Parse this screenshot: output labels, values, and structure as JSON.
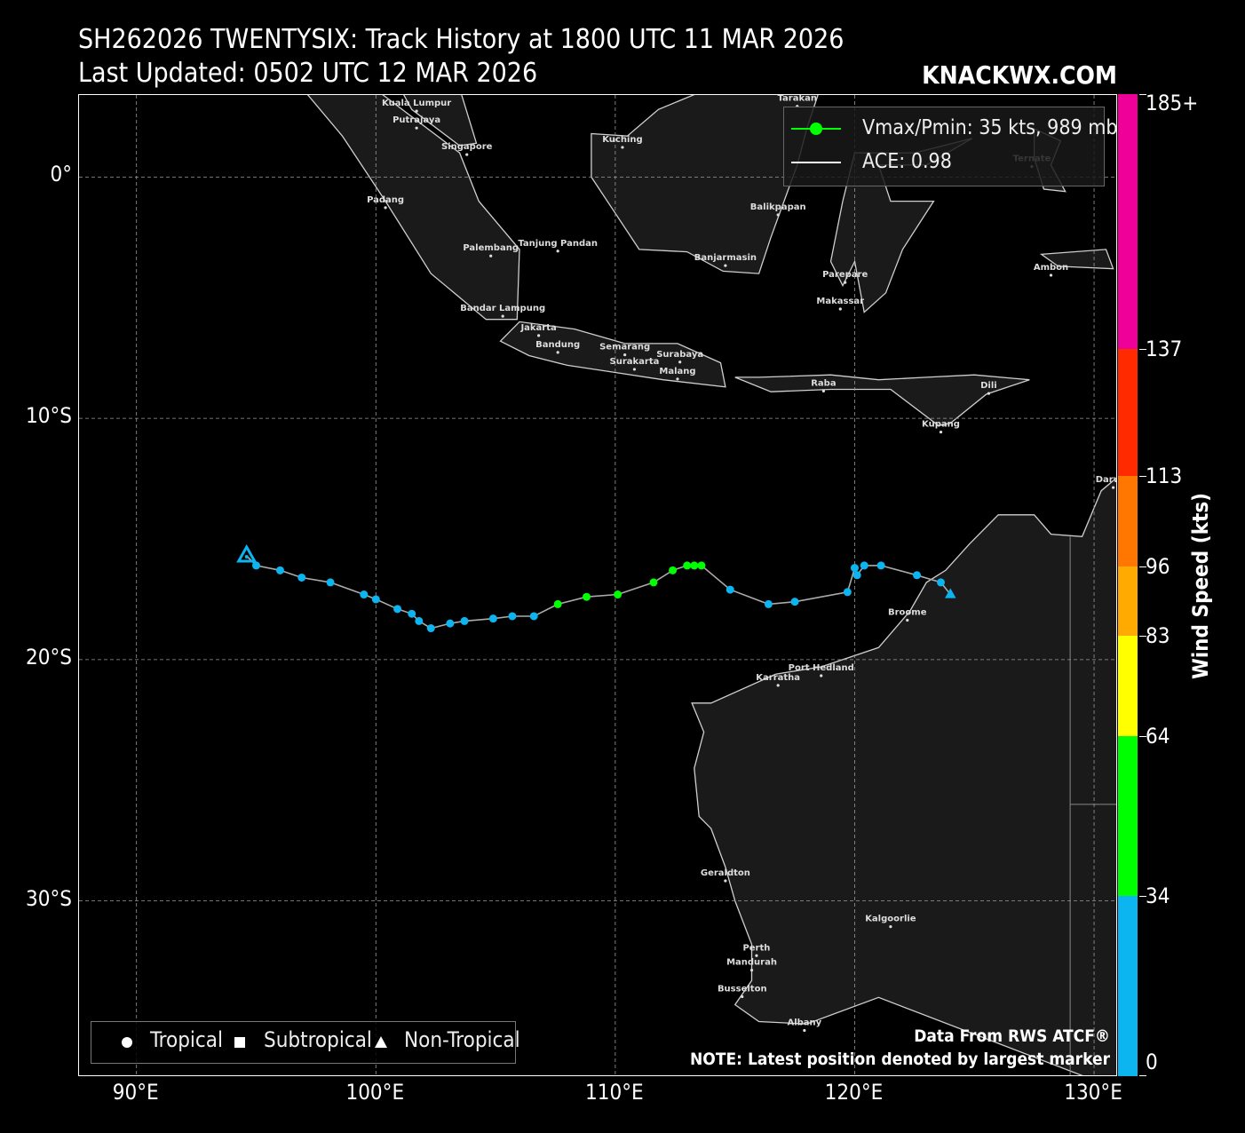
{
  "header": {
    "title_line1": "SH262026 TWENTYSIX: Track History at 1800 UTC 11 MAR 2026",
    "title_line2": "Last Updated: 0502 UTC 12 MAR 2026",
    "brand": "KNACKWX.COM"
  },
  "axes": {
    "lat_labels": [
      {
        "lat": 0,
        "label": "0°"
      },
      {
        "lat": -10,
        "label": "10°S"
      },
      {
        "lat": -20,
        "label": "20°S"
      },
      {
        "lat": -30,
        "label": "30°S"
      }
    ],
    "lon_labels": [
      {
        "lon": 90,
        "label": "90°E"
      },
      {
        "lon": 100,
        "label": "100°E"
      },
      {
        "lon": 110,
        "label": "110°E"
      },
      {
        "lon": 120,
        "label": "120°E"
      },
      {
        "lon": 130,
        "label": "130°E"
      }
    ],
    "lon_range": [
      87.6,
      131.0
    ],
    "lat_range": [
      -37.3,
      3.4
    ],
    "grid": "dashed"
  },
  "legend_top": {
    "vmax_label": "Vmax/Pmin: 35 kts, 989 mb",
    "ace_label": "ACE: 0.98",
    "vmax_color": "#00ff00",
    "ace_color": "#ffffff"
  },
  "legend_bottom": {
    "tropical": "Tropical",
    "subtropical": "Subtropical",
    "non_tropical": "Non-Tropical"
  },
  "notes": {
    "source": "Data From RWS ATCF®",
    "latest": "NOTE: Latest position denoted by largest marker"
  },
  "colorbar": {
    "title": "Wind Speed (kts)",
    "max": 185,
    "ticks": [
      {
        "value": 0,
        "label": "0"
      },
      {
        "value": 34,
        "label": "34"
      },
      {
        "value": 64,
        "label": "64"
      },
      {
        "value": 83,
        "label": "83"
      },
      {
        "value": 96,
        "label": "96"
      },
      {
        "value": 113,
        "label": "113"
      },
      {
        "value": 137,
        "label": "137"
      },
      {
        "value": 185,
        "label": "185+"
      }
    ],
    "segments": [
      {
        "from": 0,
        "to": 34,
        "color": "#0cb4f0"
      },
      {
        "from": 34,
        "to": 64,
        "color": "#00ff00"
      },
      {
        "from": 64,
        "to": 83,
        "color": "#ffff00"
      },
      {
        "from": 83,
        "to": 96,
        "color": "#ffaa00"
      },
      {
        "from": 96,
        "to": 113,
        "color": "#ff7700"
      },
      {
        "from": 113,
        "to": 137,
        "color": "#ff2a00"
      },
      {
        "from": 137,
        "to": 185,
        "color": "#ee0099"
      }
    ]
  },
  "track": {
    "line_color": "#aaaaaa",
    "points": [
      {
        "lon": 124.0,
        "lat": -17.3,
        "kts": 30,
        "type": "non-tropical"
      },
      {
        "lon": 123.6,
        "lat": -16.8,
        "kts": 30,
        "type": "tropical"
      },
      {
        "lon": 122.6,
        "lat": -16.5,
        "kts": 30,
        "type": "tropical"
      },
      {
        "lon": 121.1,
        "lat": -16.1,
        "kts": 30,
        "type": "tropical"
      },
      {
        "lon": 120.4,
        "lat": -16.1,
        "kts": 30,
        "type": "tropical"
      },
      {
        "lon": 120.1,
        "lat": -16.5,
        "kts": 30,
        "type": "tropical"
      },
      {
        "lon": 120.0,
        "lat": -16.2,
        "kts": 30,
        "type": "tropical"
      },
      {
        "lon": 119.7,
        "lat": -17.2,
        "kts": 30,
        "type": "tropical"
      },
      {
        "lon": 117.5,
        "lat": -17.6,
        "kts": 30,
        "type": "tropical"
      },
      {
        "lon": 116.4,
        "lat": -17.7,
        "kts": 30,
        "type": "tropical"
      },
      {
        "lon": 114.8,
        "lat": -17.1,
        "kts": 30,
        "type": "tropical"
      },
      {
        "lon": 113.6,
        "lat": -16.1,
        "kts": 35,
        "type": "tropical"
      },
      {
        "lon": 113.3,
        "lat": -16.1,
        "kts": 35,
        "type": "tropical"
      },
      {
        "lon": 113.0,
        "lat": -16.1,
        "kts": 35,
        "type": "tropical"
      },
      {
        "lon": 112.4,
        "lat": -16.3,
        "kts": 35,
        "type": "tropical"
      },
      {
        "lon": 111.6,
        "lat": -16.8,
        "kts": 35,
        "type": "tropical"
      },
      {
        "lon": 110.1,
        "lat": -17.3,
        "kts": 35,
        "type": "tropical"
      },
      {
        "lon": 108.8,
        "lat": -17.4,
        "kts": 35,
        "type": "tropical"
      },
      {
        "lon": 107.6,
        "lat": -17.7,
        "kts": 35,
        "type": "tropical"
      },
      {
        "lon": 106.6,
        "lat": -18.2,
        "kts": 30,
        "type": "tropical"
      },
      {
        "lon": 105.7,
        "lat": -18.2,
        "kts": 30,
        "type": "tropical"
      },
      {
        "lon": 104.9,
        "lat": -18.3,
        "kts": 30,
        "type": "tropical"
      },
      {
        "lon": 103.7,
        "lat": -18.4,
        "kts": 30,
        "type": "tropical"
      },
      {
        "lon": 103.1,
        "lat": -18.5,
        "kts": 30,
        "type": "tropical"
      },
      {
        "lon": 102.3,
        "lat": -18.7,
        "kts": 30,
        "type": "tropical"
      },
      {
        "lon": 101.8,
        "lat": -18.4,
        "kts": 30,
        "type": "tropical"
      },
      {
        "lon": 101.5,
        "lat": -18.1,
        "kts": 30,
        "type": "tropical"
      },
      {
        "lon": 100.9,
        "lat": -17.9,
        "kts": 30,
        "type": "tropical"
      },
      {
        "lon": 100.0,
        "lat": -17.5,
        "kts": 30,
        "type": "tropical"
      },
      {
        "lon": 99.5,
        "lat": -17.3,
        "kts": 30,
        "type": "tropical"
      },
      {
        "lon": 98.1,
        "lat": -16.8,
        "kts": 30,
        "type": "tropical"
      },
      {
        "lon": 96.9,
        "lat": -16.6,
        "kts": 30,
        "type": "tropical"
      },
      {
        "lon": 96.0,
        "lat": -16.3,
        "kts": 30,
        "type": "tropical"
      },
      {
        "lon": 95.0,
        "lat": -16.1,
        "kts": 30,
        "type": "tropical"
      },
      {
        "lon": 94.6,
        "lat": -15.7,
        "kts": 30,
        "type": "non-tropical",
        "latest": true
      }
    ]
  },
  "cities": [
    {
      "name": "Kuala Lumpur",
      "lon": 101.7,
      "lat": 3.1
    },
    {
      "name": "Putrajaya",
      "lon": 101.7,
      "lat": 2.4
    },
    {
      "name": "Singapore",
      "lon": 103.8,
      "lat": 1.3
    },
    {
      "name": "Kuching",
      "lon": 110.3,
      "lat": 1.6
    },
    {
      "name": "Tarakan",
      "lon": 117.6,
      "lat": 3.3
    },
    {
      "name": "Ternate",
      "lon": 127.4,
      "lat": 0.8
    },
    {
      "name": "Padang",
      "lon": 100.4,
      "lat": -0.9
    },
    {
      "name": "Balikpapan",
      "lon": 116.8,
      "lat": -1.2
    },
    {
      "name": "Palembang",
      "lon": 104.8,
      "lat": -2.9
    },
    {
      "name": "Tanjung Pandan",
      "lon": 107.6,
      "lat": -2.7
    },
    {
      "name": "Banjarmasin",
      "lon": 114.6,
      "lat": -3.3
    },
    {
      "name": "Parepare",
      "lon": 119.6,
      "lat": -4.0
    },
    {
      "name": "Ambon",
      "lon": 128.2,
      "lat": -3.7
    },
    {
      "name": "Makassar",
      "lon": 119.4,
      "lat": -5.1
    },
    {
      "name": "Bandar Lampung",
      "lon": 105.3,
      "lat": -5.4
    },
    {
      "name": "Jakarta",
      "lon": 106.8,
      "lat": -6.2
    },
    {
      "name": "Bandung",
      "lon": 107.6,
      "lat": -6.9
    },
    {
      "name": "Semarang",
      "lon": 110.4,
      "lat": -7.0
    },
    {
      "name": "Surabaya",
      "lon": 112.7,
      "lat": -7.3
    },
    {
      "name": "Surakarta",
      "lon": 110.8,
      "lat": -7.6
    },
    {
      "name": "Malang",
      "lon": 112.6,
      "lat": -8.0
    },
    {
      "name": "Raba",
      "lon": 118.7,
      "lat": -8.5
    },
    {
      "name": "Dili",
      "lon": 125.6,
      "lat": -8.6
    },
    {
      "name": "Kupang",
      "lon": 123.6,
      "lat": -10.2
    },
    {
      "name": "Darwin",
      "lon": 130.8,
      "lat": -12.5
    },
    {
      "name": "Broome",
      "lon": 122.2,
      "lat": -18.0
    },
    {
      "name": "Port Hedland",
      "lon": 118.6,
      "lat": -20.3
    },
    {
      "name": "Karratha",
      "lon": 116.8,
      "lat": -20.7
    },
    {
      "name": "Geraldton",
      "lon": 114.6,
      "lat": -28.8
    },
    {
      "name": "Kalgoorlie",
      "lon": 121.5,
      "lat": -30.7
    },
    {
      "name": "Perth",
      "lon": 115.9,
      "lat": -31.9
    },
    {
      "name": "Mandurah",
      "lon": 115.7,
      "lat": -32.5
    },
    {
      "name": "Busselton",
      "lon": 115.3,
      "lat": -33.6
    },
    {
      "name": "Albany",
      "lon": 117.9,
      "lat": -35.0
    }
  ]
}
